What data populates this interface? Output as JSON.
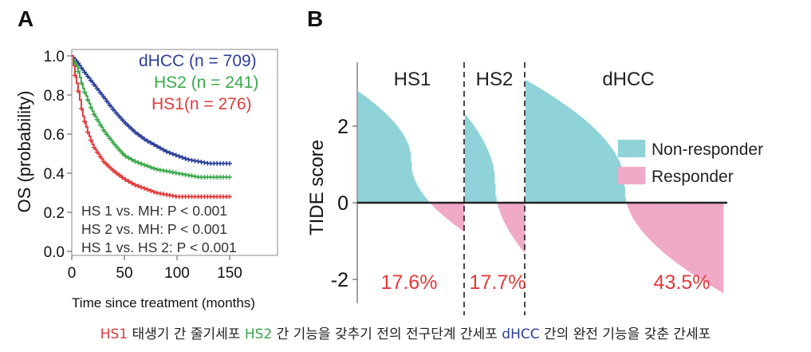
{
  "panel_a": {
    "label": "A",
    "legend": [
      {
        "name": "dHCC",
        "n_text": "(n = 709)",
        "color": "#2c3f9c"
      },
      {
        "name": "HS2",
        "n_text": "(n = 241)",
        "color": "#3aa94a"
      },
      {
        "name": "HS1",
        "n_text": "(n = 276)",
        "color": "#e03b3b"
      }
    ],
    "stats": [
      "HS 1 vs. MH: P < 0.001",
      "HS 2 vs. MH: P < 0.001",
      "HS 1 vs. HS 2:  P < 0.001"
    ]
  },
  "panel_b": {
    "label": "B",
    "legend": [
      {
        "name": "Non-responder",
        "color": "#8fd3d9"
      },
      {
        "name": "Responder",
        "color": "#f0a9c6"
      }
    ]
  },
  "caption": {
    "hs1_label": "HS1",
    "hs1_text": " 태생기 간 줄기세포 ",
    "hs2_label": "HS2",
    "hs2_text": " 간 기능을 갖추기 전의 전구단계 간세포 ",
    "dhcc_label": "dHCC",
    "dhcc_text": " 간의 완전 기능을 갖춘 간세포"
  },
  "chart_data": [
    {
      "type": "line",
      "title": "",
      "xlabel": "Time since treatment (months)",
      "ylabel": "OS (probability)",
      "xlim": [
        0,
        150
      ],
      "ylim": [
        0,
        1.0
      ],
      "xticks": [
        0,
        50,
        100,
        150
      ],
      "yticks": [
        0.0,
        0.2,
        0.4,
        0.6,
        0.8,
        1.0
      ],
      "xtick_labels": [
        "0",
        "50",
        "100",
        "150"
      ],
      "ytick_labels": [
        "0.0",
        "0.2",
        "0.4",
        "0.6",
        "0.8",
        "1.0"
      ],
      "series": [
        {
          "name": "dHCC",
          "color": "#2c3f9c",
          "x": [
            0,
            5,
            10,
            20,
            30,
            40,
            50,
            60,
            70,
            80,
            90,
            100,
            110,
            120,
            130,
            140,
            150
          ],
          "y": [
            1.0,
            0.97,
            0.93,
            0.86,
            0.79,
            0.72,
            0.66,
            0.61,
            0.57,
            0.54,
            0.51,
            0.49,
            0.47,
            0.46,
            0.45,
            0.45,
            0.45
          ]
        },
        {
          "name": "HS2",
          "color": "#3aa94a",
          "x": [
            0,
            5,
            10,
            20,
            30,
            40,
            50,
            60,
            70,
            80,
            90,
            100,
            110,
            120,
            130,
            140,
            150
          ],
          "y": [
            1.0,
            0.94,
            0.84,
            0.71,
            0.62,
            0.55,
            0.49,
            0.46,
            0.44,
            0.42,
            0.41,
            0.4,
            0.39,
            0.38,
            0.38,
            0.38,
            0.38
          ]
        },
        {
          "name": "HS1",
          "color": "#e03b3b",
          "x": [
            0,
            3,
            6,
            10,
            15,
            20,
            30,
            40,
            50,
            60,
            70,
            80,
            90,
            100,
            120,
            150
          ],
          "y": [
            1.0,
            0.9,
            0.82,
            0.7,
            0.61,
            0.54,
            0.46,
            0.41,
            0.37,
            0.34,
            0.32,
            0.3,
            0.29,
            0.28,
            0.28,
            0.28
          ]
        }
      ]
    },
    {
      "type": "bar",
      "title": "",
      "ylabel": "TIDE score",
      "ylim": [
        -2.5,
        3.5
      ],
      "yticks": [
        -2,
        0,
        2
      ],
      "ytick_labels": [
        "-2",
        "0",
        "2"
      ],
      "groups": [
        {
          "name": "HS1",
          "responder_pct": "17.6%",
          "start": 2.9,
          "end": -0.75
        },
        {
          "name": "HS2",
          "responder_pct": "17.7%",
          "start": 2.3,
          "end": -1.3
        },
        {
          "name": "dHCC",
          "responder_pct": "43.5%",
          "start": 3.2,
          "end": -2.35
        }
      ],
      "series": [
        {
          "name": "Non-responder",
          "color": "#8fd3d9"
        },
        {
          "name": "Responder",
          "color": "#f0a9c6"
        }
      ]
    }
  ]
}
